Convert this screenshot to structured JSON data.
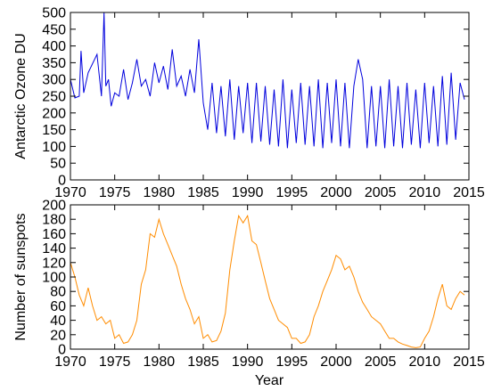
{
  "chart_data": [
    {
      "type": "line",
      "ylabel": "Antarctic Ozone DU",
      "xlabel": "",
      "xlim": [
        1970,
        2015
      ],
      "ylim": [
        0,
        500
      ],
      "x_ticks": [
        "1970",
        "1975",
        "1980",
        "1985",
        "1990",
        "1995",
        "2000",
        "2005",
        "2010",
        "2015"
      ],
      "y_ticks": [
        "0",
        "50",
        "100",
        "150",
        "200",
        "250",
        "300",
        "350",
        "400",
        "450",
        "500"
      ],
      "grid": false,
      "series": [
        {
          "color": "#0000dd",
          "x": [
            1970.0,
            1970.5,
            1971.0,
            1971.2,
            1971.5,
            1972.0,
            1973.0,
            1973.5,
            1973.8,
            1974.0,
            1974.3,
            1974.6,
            1975.0,
            1975.5,
            1976.0,
            1976.5,
            1977.0,
            1977.5,
            1978.0,
            1978.5,
            1979.0,
            1979.5,
            1980.0,
            1980.5,
            1981.0,
            1981.5,
            1982.0,
            1982.5,
            1983.0,
            1983.5,
            1984.0,
            1984.5,
            1985.0,
            1985.5,
            1986.0,
            1986.5,
            1987.0,
            1987.5,
            1988.0,
            1988.5,
            1989.0,
            1989.5,
            1990.0,
            1990.5,
            1991.0,
            1991.5,
            1992.0,
            1992.5,
            1993.0,
            1993.5,
            1994.0,
            1994.5,
            1995.0,
            1995.5,
            1996.0,
            1996.5,
            1997.0,
            1997.5,
            1998.0,
            1998.5,
            1999.0,
            1999.5,
            2000.0,
            2000.5,
            2001.0,
            2001.5,
            2002.0,
            2002.5,
            2003.0,
            2003.5,
            2004.0,
            2004.5,
            2005.0,
            2005.5,
            2006.0,
            2006.5,
            2007.0,
            2007.5,
            2008.0,
            2008.5,
            2009.0,
            2009.5,
            2010.0,
            2010.5,
            2011.0,
            2011.5,
            2012.0,
            2012.5,
            2013.0,
            2013.5,
            2014.0,
            2014.5
          ],
          "y": [
            300,
            245,
            250,
            385,
            260,
            320,
            375,
            250,
            500,
            280,
            300,
            220,
            260,
            250,
            330,
            240,
            290,
            360,
            280,
            300,
            250,
            350,
            290,
            340,
            270,
            390,
            280,
            310,
            250,
            330,
            260,
            420,
            230,
            150,
            290,
            140,
            280,
            130,
            300,
            120,
            280,
            140,
            290,
            110,
            290,
            115,
            280,
            105,
            270,
            100,
            300,
            95,
            270,
            110,
            290,
            105,
            280,
            100,
            300,
            95,
            290,
            110,
            300,
            100,
            290,
            95,
            280,
            360,
            300,
            95,
            280,
            100,
            280,
            95,
            300,
            100,
            280,
            95,
            290,
            105,
            270,
            95,
            290,
            110,
            280,
            100,
            310,
            105,
            320,
            120,
            290,
            240
          ]
        }
      ]
    },
    {
      "type": "line",
      "ylabel": "Number of sunspots",
      "xlabel": "Year",
      "xlim": [
        1970,
        2015
      ],
      "ylim": [
        0,
        200
      ],
      "x_ticks": [
        "1970",
        "1975",
        "1980",
        "1985",
        "1990",
        "1995",
        "2000",
        "2005",
        "2010",
        "2015"
      ],
      "y_ticks": [
        "0",
        "20",
        "40",
        "60",
        "80",
        "100",
        "120",
        "140",
        "160",
        "180",
        "200"
      ],
      "grid": false,
      "series": [
        {
          "color": "#ff8c00",
          "x": [
            1970.0,
            1970.5,
            1971.0,
            1971.5,
            1972.0,
            1972.5,
            1973.0,
            1973.5,
            1974.0,
            1974.5,
            1975.0,
            1975.5,
            1976.0,
            1976.5,
            1977.0,
            1977.5,
            1978.0,
            1978.5,
            1979.0,
            1979.5,
            1980.0,
            1980.5,
            1981.0,
            1981.5,
            1982.0,
            1982.5,
            1983.0,
            1983.5,
            1984.0,
            1984.5,
            1985.0,
            1985.5,
            1986.0,
            1986.5,
            1987.0,
            1987.5,
            1988.0,
            1988.5,
            1989.0,
            1989.5,
            1990.0,
            1990.5,
            1991.0,
            1991.5,
            1992.0,
            1992.5,
            1993.0,
            1993.5,
            1994.0,
            1994.5,
            1995.0,
            1995.5,
            1996.0,
            1996.5,
            1997.0,
            1997.5,
            1998.0,
            1998.5,
            1999.0,
            1999.5,
            2000.0,
            2000.5,
            2001.0,
            2001.5,
            2002.0,
            2002.5,
            2003.0,
            2003.5,
            2004.0,
            2004.5,
            2005.0,
            2005.5,
            2006.0,
            2006.5,
            2007.0,
            2007.5,
            2008.0,
            2008.5,
            2009.0,
            2009.5,
            2010.0,
            2010.5,
            2011.0,
            2011.5,
            2012.0,
            2012.5,
            2013.0,
            2013.5,
            2014.0,
            2014.5
          ],
          "y": [
            120,
            100,
            75,
            60,
            85,
            60,
            40,
            45,
            35,
            40,
            15,
            20,
            8,
            10,
            20,
            40,
            90,
            110,
            160,
            155,
            180,
            160,
            145,
            130,
            115,
            90,
            70,
            55,
            35,
            45,
            15,
            20,
            10,
            12,
            25,
            50,
            110,
            150,
            185,
            175,
            185,
            150,
            145,
            120,
            95,
            70,
            55,
            40,
            35,
            30,
            15,
            15,
            8,
            10,
            20,
            45,
            60,
            80,
            95,
            110,
            130,
            125,
            110,
            115,
            100,
            80,
            65,
            55,
            45,
            40,
            35,
            25,
            15,
            15,
            10,
            7,
            5,
            3,
            2,
            3,
            15,
            25,
            45,
            70,
            90,
            60,
            55,
            70,
            80,
            75
          ]
        }
      ]
    }
  ]
}
